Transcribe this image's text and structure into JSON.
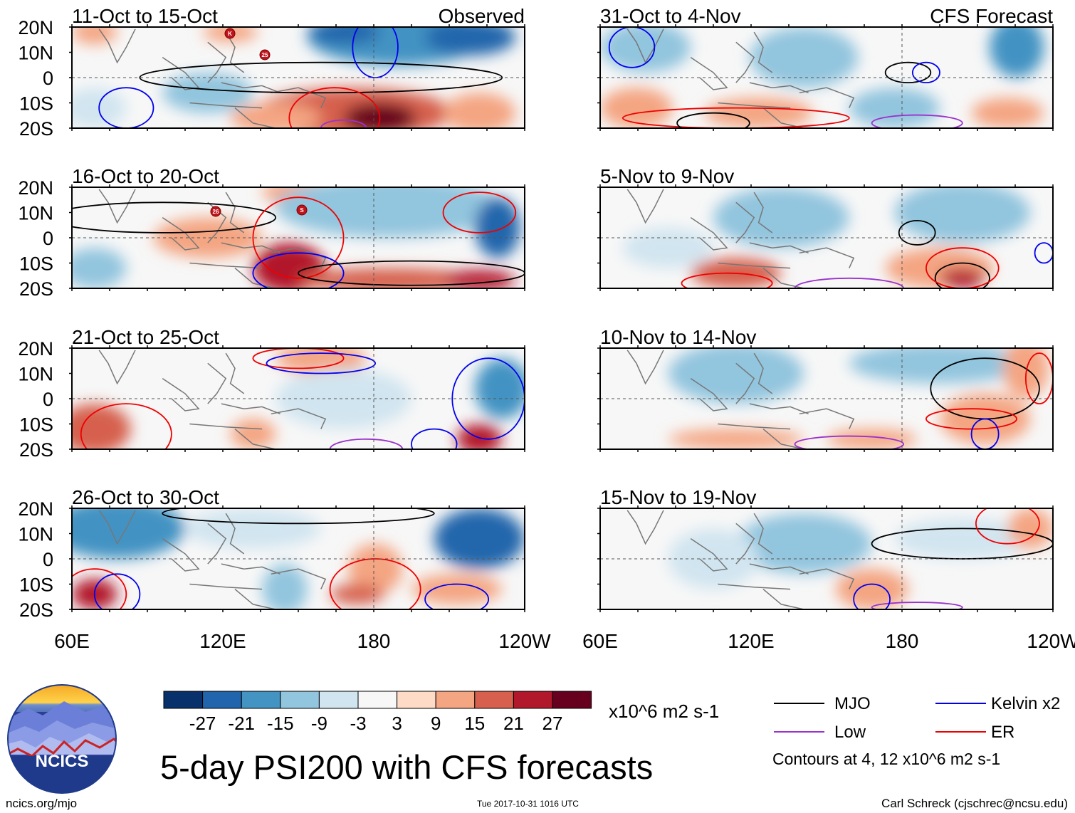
{
  "panels_left": [
    {
      "period": "11-Oct to 15-Oct",
      "tag": "Observed"
    },
    {
      "period": "16-Oct to 20-Oct",
      "tag": ""
    },
    {
      "period": "21-Oct to 25-Oct",
      "tag": ""
    },
    {
      "period": "26-Oct to 30-Oct",
      "tag": ""
    }
  ],
  "panels_right": [
    {
      "period": "31-Oct to 4-Nov",
      "tag": "CFS Forecast"
    },
    {
      "period": "5-Nov to 9-Nov",
      "tag": ""
    },
    {
      "period": "10-Nov to 14-Nov",
      "tag": ""
    },
    {
      "period": "15-Nov to 19-Nov",
      "tag": ""
    }
  ],
  "lat_labels": [
    "20N",
    "10N",
    "0",
    "10S",
    "20S"
  ],
  "lon_labels": [
    "60E",
    "120E",
    "180",
    "120W"
  ],
  "storm_markers": [
    {
      "label": "K"
    },
    {
      "label": "25"
    },
    {
      "label": "26"
    },
    {
      "label": "S"
    }
  ],
  "colorbar": {
    "colors": [
      "#08306b",
      "#2166ac",
      "#4393c3",
      "#92c5de",
      "#d1e5f0",
      "#f7f7f7",
      "#fddbc7",
      "#f4a582",
      "#d6604d",
      "#b2182b",
      "#67001f"
    ],
    "ticks": [
      "-27",
      "-21",
      "-15",
      "-9",
      "-3",
      "3",
      "9",
      "15",
      "21",
      "27"
    ],
    "units": "x10^6 m2 s-1"
  },
  "legend": {
    "items": [
      {
        "label": "MJO",
        "color": "#000000"
      },
      {
        "label": "Kelvin x2",
        "color": "#0000ee"
      },
      {
        "label": "Low",
        "color": "#9a32cd"
      },
      {
        "label": "ER",
        "color": "#ee0000"
      }
    ],
    "contours_note": "Contours at 4, 12 x10^6 m2 s-1"
  },
  "title": "5-day PSI200 with CFS forecasts",
  "logo_text": "NCICS",
  "url": "ncics.org/mjo",
  "timestamp": "Tue 2017-10-31 1016 UTC",
  "credit": "Carl Schreck (cjschrec@ncsu.edu)"
}
